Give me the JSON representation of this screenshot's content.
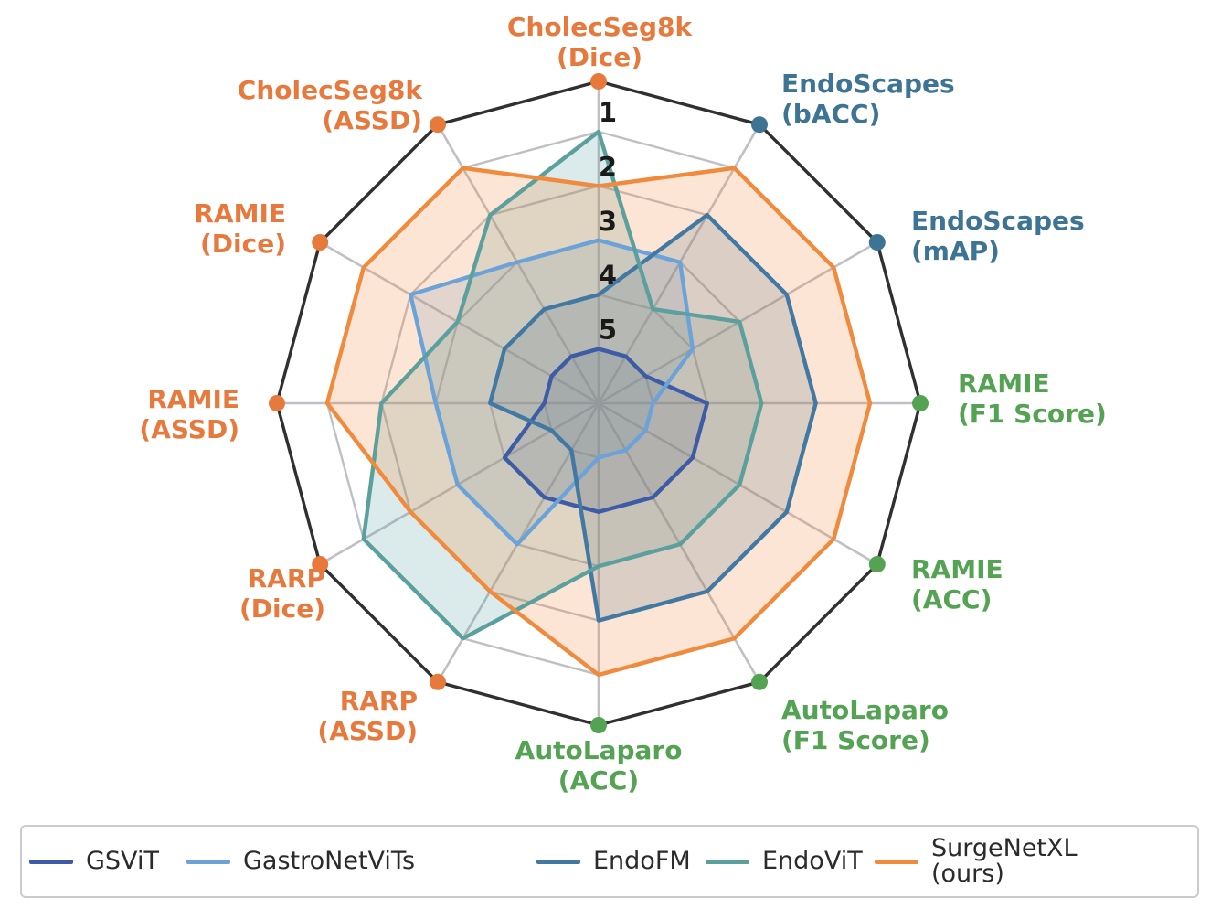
{
  "chart_data": {
    "type": "radar",
    "description": "Ranking radar chart (rank 1 = outer, rank 5 = inner) comparing surgical foundation models across 12 benchmark metrics",
    "rank_ticks": [
      "1",
      "2",
      "3",
      "4",
      "5"
    ],
    "axis_count": 12,
    "rank_range": [
      1,
      5
    ],
    "grid_on": true,
    "legend_position": "bottom",
    "axes": [
      {
        "label": "CholecSeg8k\n(Dice)",
        "group": "segmentation",
        "color": "#E8793D"
      },
      {
        "label": "EndoScapes\n(bACC)",
        "group": "endoscapes",
        "color": "#3D7494"
      },
      {
        "label": "EndoScapes\n(mAP)",
        "group": "endoscapes",
        "color": "#3D7494"
      },
      {
        "label": "RAMIE\n(F1 Score)",
        "group": "classification",
        "color": "#53A353"
      },
      {
        "label": "RAMIE\n(ACC)",
        "group": "classification",
        "color": "#53A353"
      },
      {
        "label": "AutoLaparo\n(F1 Score)",
        "group": "classification",
        "color": "#53A353"
      },
      {
        "label": "AutoLaparo\n(ACC)",
        "group": "classification",
        "color": "#53A353"
      },
      {
        "label": "RARP\n(ASSD)",
        "group": "segmentation",
        "color": "#E8793D"
      },
      {
        "label": "RARP\n(Dice)",
        "group": "segmentation",
        "color": "#E8793D"
      },
      {
        "label": "RAMIE\n(ASSD)",
        "group": "segmentation",
        "color": "#E8793D"
      },
      {
        "label": "RAMIE\n(Dice)",
        "group": "segmentation",
        "color": "#E8793D"
      },
      {
        "label": "CholecSeg8k\n(ASSD)",
        "group": "segmentation",
        "color": "#E8793D"
      }
    ],
    "series": [
      {
        "name": "GSViT",
        "color": "#3E5BA5",
        "values": [
          5,
          5,
          5,
          4,
          4,
          4,
          4,
          4,
          4,
          5,
          5,
          5
        ]
      },
      {
        "name": "GastroNetViTs",
        "color": "#6BA3D9",
        "values": [
          3,
          3,
          4,
          5,
          5,
          5,
          5,
          3,
          3,
          3,
          2,
          3
        ]
      },
      {
        "name": "EndoFM",
        "color": "#4279A3",
        "values": [
          4,
          2,
          2,
          2,
          2,
          2,
          2,
          5,
          5,
          4,
          4,
          4
        ]
      },
      {
        "name": "EndoViT",
        "color": "#5CA09E",
        "values": [
          1,
          4,
          3,
          3,
          3,
          3,
          3,
          1,
          1,
          2,
          3,
          2
        ]
      },
      {
        "name": "SurgeNetXL\n(ours)",
        "color": "#F08A3C",
        "values": [
          2,
          1,
          1,
          1,
          1,
          1,
          1,
          2,
          2,
          1,
          1,
          1
        ]
      }
    ],
    "style": {
      "grid_color": "#BFBFC6",
      "frame_color": "#303030",
      "tick_color": "#1a1a1a",
      "fill_opacity": 0.22
    }
  },
  "legend": {
    "items": [
      {
        "label": "GSViT",
        "color": "#3E5BA5"
      },
      {
        "label": "GastroNetViTs",
        "color": "#6BA3D9"
      },
      {
        "label": "EndoFM",
        "color": "#4279A3"
      },
      {
        "label": "EndoViT",
        "color": "#5CA09E"
      },
      {
        "label": "SurgeNetXL\n(ours)",
        "color": "#F08A3C"
      }
    ]
  }
}
